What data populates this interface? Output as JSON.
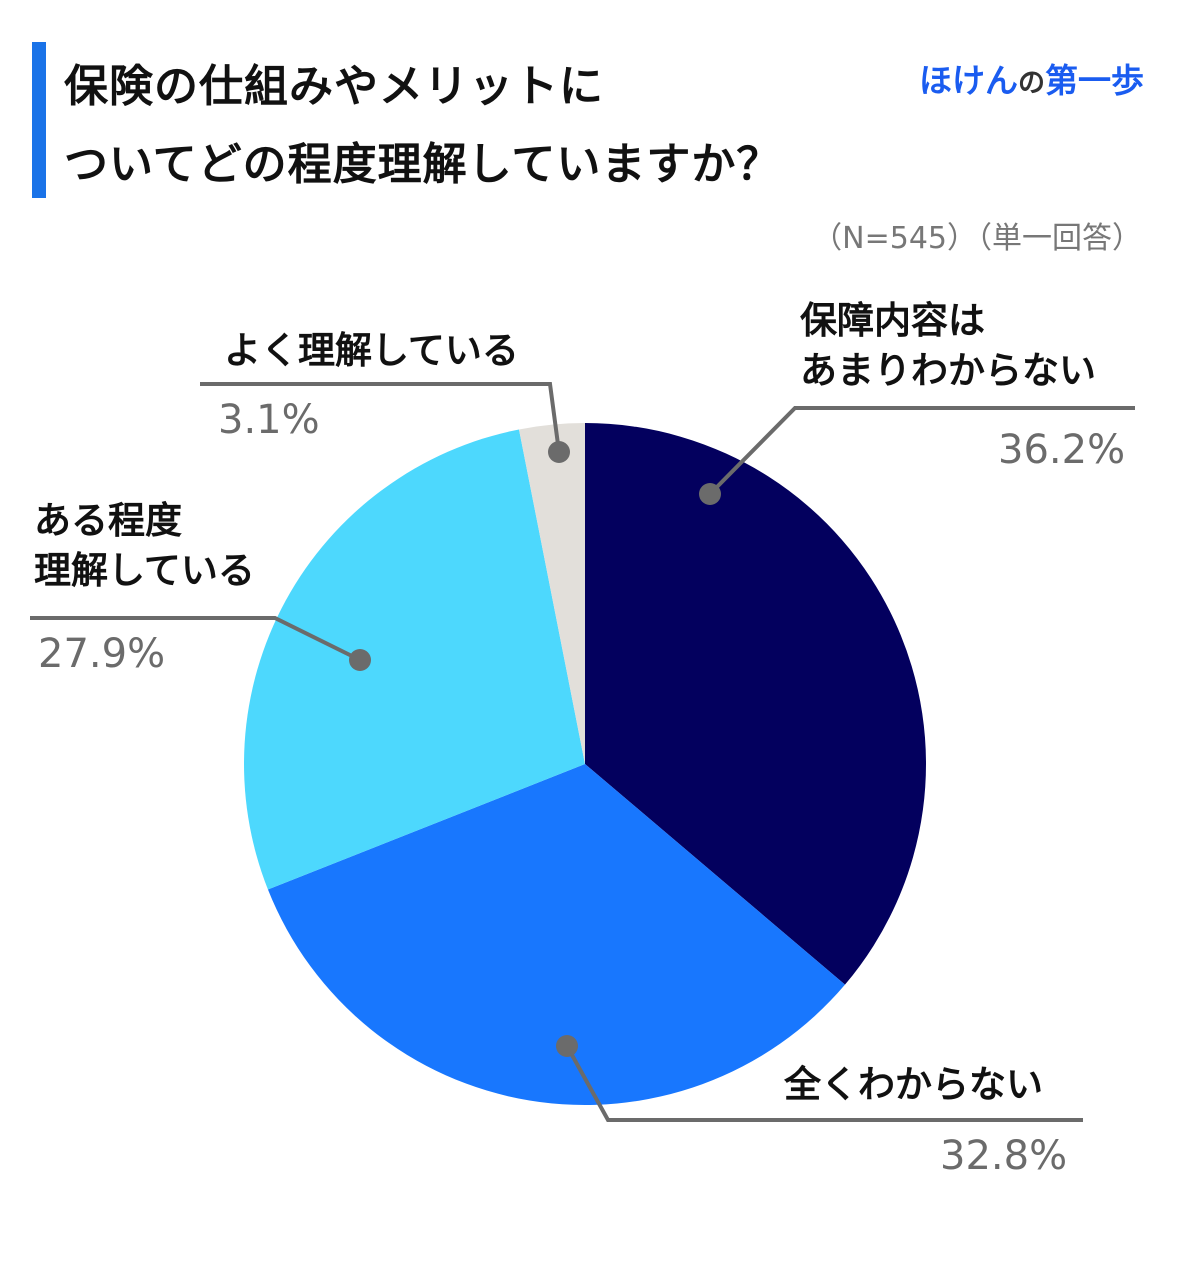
{
  "title": {
    "line1": "保険の仕組みやメリットに",
    "line2": "ついてどの程度理解していますか？",
    "accent_color": "#1a73e8"
  },
  "brand": {
    "part1": "ほけん",
    "part2": "の",
    "part3": "第一歩",
    "color": "#1a5cf0"
  },
  "note": "（N=545）（単一回答）",
  "chart_data": {
    "type": "pie",
    "start": "top",
    "direction": "clockwise",
    "slices": [
      {
        "label": "保障内容は\nあまりわからない",
        "value": 36.2,
        "value_label": "36.2%",
        "color": "#03005e"
      },
      {
        "label": "全くわからない",
        "value": 32.8,
        "value_label": "32.8%",
        "color": "#1877fe"
      },
      {
        "label": "ある程度\n理解している",
        "value": 27.9,
        "value_label": "27.9%",
        "color": "#4dd8fd"
      },
      {
        "label": "よく理解している",
        "value": 3.1,
        "value_label": "3.1%",
        "color": "#e2dfda"
      }
    ]
  }
}
